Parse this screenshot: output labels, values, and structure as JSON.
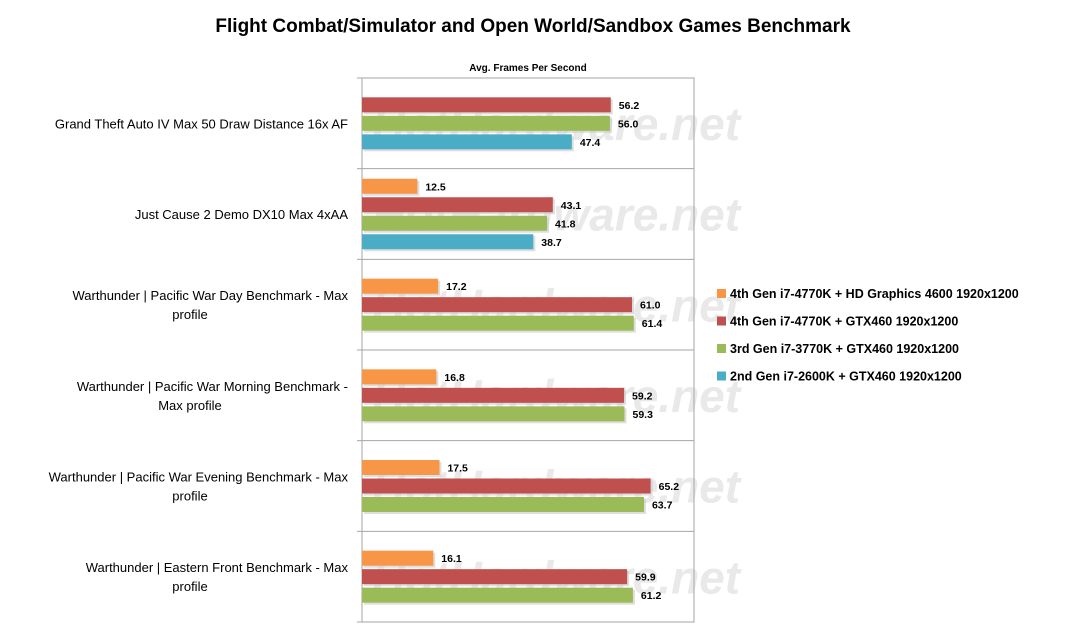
{
  "chart_data": {
    "type": "bar",
    "orientation": "horizontal",
    "title": "Flight Combat/Simulator and Open World/Sandbox Games Benchmark",
    "xlabel": "Avg. Frames Per Second",
    "ylabel": "",
    "xlim": [
      0,
      75
    ],
    "grid": false,
    "legend_position": "right",
    "watermark": "HotHardware.net",
    "categories": [
      [
        "Grand Theft Auto IV Max 50 Draw Distance 16x AF"
      ],
      [
        "Just Cause 2 Demo DX10 Max 4xAA"
      ],
      [
        "Warthunder | Pacific War Day  Benchmark - Max",
        "profile"
      ],
      [
        "Warthunder | Pacific War Morning  Benchmark -",
        "Max profile"
      ],
      [
        "Warthunder | Pacific War Evening Benchmark - Max",
        "profile"
      ],
      [
        "Warthunder | Eastern Front Benchmark - Max",
        "profile"
      ]
    ],
    "series": [
      {
        "name": "4th Gen i7-4770K + HD Graphics 4600 1920x1200",
        "color": "#f79646",
        "values": [
          null,
          12.5,
          17.2,
          16.8,
          17.5,
          16.1
        ]
      },
      {
        "name": "4th Gen i7-4770K + GTX460 1920x1200",
        "color": "#c0504d",
        "values": [
          56.2,
          43.1,
          61.0,
          59.2,
          65.2,
          59.9
        ]
      },
      {
        "name": "3rd Gen i7-3770K + GTX460 1920x1200",
        "color": "#9bbb59",
        "values": [
          56.0,
          41.8,
          61.4,
          59.3,
          63.7,
          61.2
        ]
      },
      {
        "name": "2nd Gen i7-2600K + GTX460 1920x1200",
        "color": "#4bacc6",
        "values": [
          47.4,
          38.7,
          null,
          null,
          null,
          null
        ]
      }
    ]
  }
}
